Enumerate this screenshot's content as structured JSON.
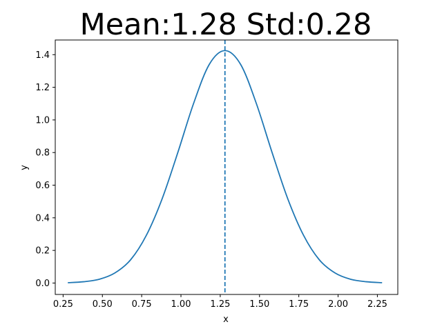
{
  "chart_data": {
    "type": "line",
    "title": "Mean:1.28 Std:0.28",
    "xlabel": "x",
    "ylabel": "y",
    "xlim": [
      0.2,
      2.38
    ],
    "ylim": [
      -0.07,
      1.49
    ],
    "xticks": [
      0.25,
      0.5,
      0.75,
      1.0,
      1.25,
      1.5,
      1.75,
      2.0,
      2.25
    ],
    "xtick_labels": [
      "0.25",
      "0.50",
      "0.75",
      "1.00",
      "1.25",
      "1.50",
      "1.75",
      "2.00",
      "2.25"
    ],
    "yticks": [
      0.0,
      0.2,
      0.4,
      0.6,
      0.8,
      1.0,
      1.2,
      1.4
    ],
    "ytick_labels": [
      "0.0",
      "0.2",
      "0.4",
      "0.6",
      "0.8",
      "1.0",
      "1.2",
      "1.4"
    ],
    "grid": false,
    "series": [
      {
        "color": "#1f77b4",
        "x": [
          0.28,
          0.38,
          0.48,
          0.58,
          0.68,
          0.78,
          0.88,
          0.98,
          1.08,
          1.18,
          1.28,
          1.38,
          1.48,
          1.58,
          1.68,
          1.78,
          1.88,
          1.98,
          2.08,
          2.18,
          2.28
        ],
        "y": [
          0.002,
          0.008,
          0.023,
          0.062,
          0.143,
          0.293,
          0.516,
          0.8,
          1.1,
          1.34,
          1.425,
          1.34,
          1.1,
          0.8,
          0.516,
          0.293,
          0.143,
          0.062,
          0.023,
          0.008,
          0.002
        ]
      }
    ],
    "vline": {
      "x": 1.28,
      "style": "dashed",
      "color": "#1f77b4"
    }
  }
}
